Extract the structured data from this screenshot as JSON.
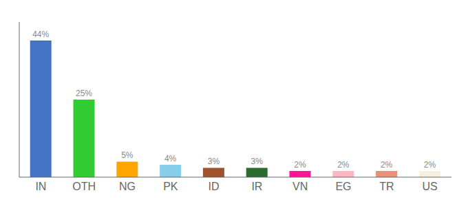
{
  "chart_data": {
    "type": "bar",
    "categories": [
      "IN",
      "OTH",
      "NG",
      "PK",
      "ID",
      "IR",
      "VN",
      "EG",
      "TR",
      "US"
    ],
    "values": [
      44,
      25,
      5,
      4,
      3,
      3,
      2,
      2,
      2,
      2
    ],
    "value_labels": [
      "44%",
      "25%",
      "5%",
      "4%",
      "3%",
      "3%",
      "2%",
      "2%",
      "2%",
      "2%"
    ],
    "colors": [
      "#4472C4",
      "#33CC33",
      "#FFA500",
      "#87CEEB",
      "#A0522D",
      "#2D6A2D",
      "#FF1493",
      "#FFB6C1",
      "#E8907A",
      "#F5F0DC"
    ],
    "ylim": [
      0,
      50
    ],
    "data_labels": true,
    "tick_labels": "x",
    "grid": false
  }
}
